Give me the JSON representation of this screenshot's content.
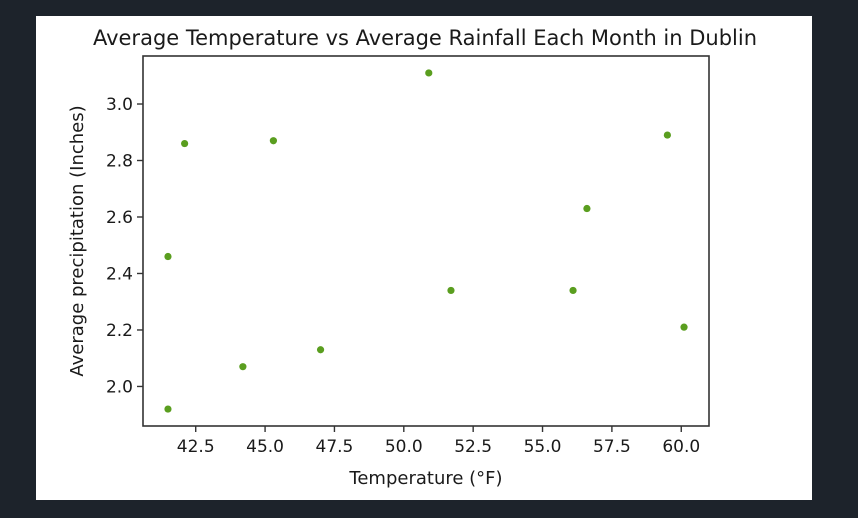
{
  "chart_data": {
    "type": "scatter",
    "title": "Average Temperature vs Average Rainfall Each Month in Dublin",
    "xlabel": "Temperature (°F)",
    "ylabel": "Average precipitation (Inches)",
    "xlim": [
      40.6,
      61.0
    ],
    "ylim": [
      1.86,
      3.17
    ],
    "xticks": [
      42.5,
      45.0,
      47.5,
      50.0,
      52.5,
      55.0,
      57.5,
      60.0
    ],
    "xtick_labels": [
      "42.5",
      "45.0",
      "47.5",
      "50.0",
      "52.5",
      "55.0",
      "57.5",
      "60.0"
    ],
    "yticks": [
      2.0,
      2.2,
      2.4,
      2.6,
      2.8,
      3.0
    ],
    "ytick_labels": [
      "2.0",
      "2.2",
      "2.4",
      "2.6",
      "2.8",
      "3.0"
    ],
    "grid": false,
    "marker_color": "#5a9e1f",
    "points": [
      {
        "x": 41.5,
        "y": 1.92
      },
      {
        "x": 41.5,
        "y": 2.46
      },
      {
        "x": 42.1,
        "y": 2.86
      },
      {
        "x": 44.2,
        "y": 2.07
      },
      {
        "x": 45.3,
        "y": 2.87
      },
      {
        "x": 47.0,
        "y": 2.13
      },
      {
        "x": 50.9,
        "y": 3.11
      },
      {
        "x": 51.7,
        "y": 2.34
      },
      {
        "x": 56.1,
        "y": 2.34
      },
      {
        "x": 56.6,
        "y": 2.63
      },
      {
        "x": 59.5,
        "y": 2.89
      },
      {
        "x": 60.1,
        "y": 2.21
      }
    ]
  }
}
